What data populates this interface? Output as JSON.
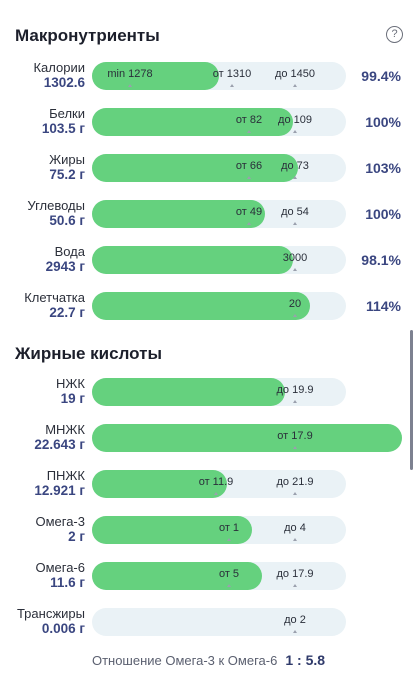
{
  "macros": {
    "title": "Макронутриенты",
    "help_icon": "question-circle-icon",
    "rows": [
      {
        "name": "Калории",
        "value": "1302.6",
        "fill_pct": 0.5,
        "marks": [
          {
            "text": "min 1278",
            "pos": 0.15
          },
          {
            "text": "от 1310",
            "pos": 0.55
          },
          {
            "text": "до 1450",
            "pos": 0.8
          }
        ],
        "pct": "99.4%"
      },
      {
        "name": "Белки",
        "value": "103.5 г",
        "fill_pct": 0.79,
        "marks": [
          {
            "text": "от 82",
            "pos": 0.62
          },
          {
            "text": "до 109",
            "pos": 0.8
          }
        ],
        "pct": "100%"
      },
      {
        "name": "Жиры",
        "value": "75.2 г",
        "fill_pct": 0.81,
        "marks": [
          {
            "text": "от 66",
            "pos": 0.62
          },
          {
            "text": "до 73",
            "pos": 0.8
          }
        ],
        "pct": "103%"
      },
      {
        "name": "Углеводы",
        "value": "50.6 г",
        "fill_pct": 0.68,
        "marks": [
          {
            "text": "от 49",
            "pos": 0.62
          },
          {
            "text": "до 54",
            "pos": 0.8
          }
        ],
        "pct": "100%"
      },
      {
        "name": "Вода",
        "value": "2943 г",
        "fill_pct": 0.79,
        "marks": [
          {
            "text": "3000",
            "pos": 0.8
          }
        ],
        "pct": "98.1%"
      },
      {
        "name": "Клетчатка",
        "value": "22.7 г",
        "fill_pct": 0.86,
        "marks": [
          {
            "text": "20",
            "pos": 0.8
          }
        ],
        "pct": "114%"
      }
    ]
  },
  "fatty": {
    "title": "Жирные кислоты",
    "rows": [
      {
        "name": "НЖК",
        "value": "19 г",
        "fill_pct": 0.76,
        "marks": [
          {
            "text": "до 19.9",
            "pos": 0.8
          }
        ]
      },
      {
        "name": "МНЖК",
        "value": "22.643 г",
        "fill_pct": 1.0,
        "marks": [
          {
            "text": "от 17.9",
            "pos": 0.8
          }
        ]
      },
      {
        "name": "ПНЖК",
        "value": "12.921 г",
        "fill_pct": 0.53,
        "marks": [
          {
            "text": "от 11.9",
            "pos": 0.49
          },
          {
            "text": "до 21.9",
            "pos": 0.8
          }
        ]
      },
      {
        "name": "Омега-3",
        "value": "2 г",
        "fill_pct": 0.63,
        "marks": [
          {
            "text": "от 1",
            "pos": 0.54
          },
          {
            "text": "до 4",
            "pos": 0.8
          }
        ]
      },
      {
        "name": "Омега-6",
        "value": "11.6 г",
        "fill_pct": 0.67,
        "marks": [
          {
            "text": "от 5",
            "pos": 0.54
          },
          {
            "text": "до 17.9",
            "pos": 0.8
          }
        ]
      },
      {
        "name": "Трансжиры",
        "value": "0.006 г",
        "fill_pct": 0.0,
        "marks": [
          {
            "text": "до 2",
            "pos": 0.8
          }
        ]
      }
    ]
  },
  "ratio": {
    "label": "Отношение Омега-3 к Омега-6",
    "value": "1 : 5.8"
  }
}
